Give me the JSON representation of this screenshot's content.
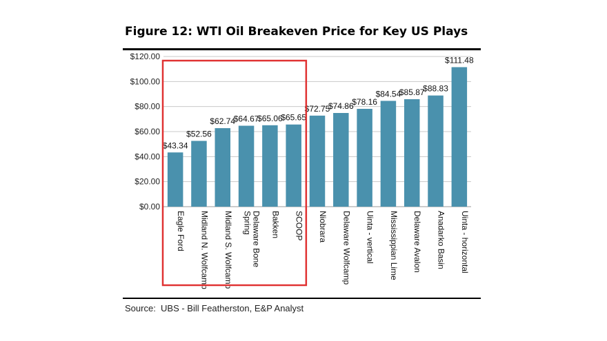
{
  "figure": {
    "title": "Figure 12: WTI Oil Breakeven Price for Key US Plays",
    "source": "Source:  UBS - Bill Featherston, E&P Analyst"
  },
  "chart_data": {
    "type": "bar",
    "title": "Figure 12: WTI Oil Breakeven Price for Key US Plays",
    "xlabel": "",
    "ylabel": "",
    "ylim": [
      0,
      120
    ],
    "yticks": [
      0,
      20,
      40,
      60,
      80,
      100,
      120
    ],
    "ytick_labels": [
      "$0.00",
      "$20.00",
      "$40.00",
      "$60.00",
      "$80.00",
      "$100.00",
      "$120.00"
    ],
    "grid": true,
    "categories": [
      [
        "Eagle Ford"
      ],
      [
        "Midland N. Wolfcamp"
      ],
      [
        "Midland S. Wolfcamp"
      ],
      [
        "Delaware Bone",
        "Spring"
      ],
      [
        "Bakken"
      ],
      [
        "SCOOP"
      ],
      [
        "Niobrara"
      ],
      [
        "Delaware Wolfcamp"
      ],
      [
        "Uinta - vertical"
      ],
      [
        "Mississippian Lime"
      ],
      [
        "Delaware Avalon"
      ],
      [
        "Anadarko Basin"
      ],
      [
        "Uinta - horizontal"
      ]
    ],
    "values": [
      43.34,
      52.56,
      62.74,
      64.67,
      65.06,
      65.65,
      72.75,
      74.86,
      78.16,
      84.54,
      85.87,
      88.83,
      111.48
    ],
    "value_labels": [
      "$43.34",
      "$52.56",
      "$62.74",
      "$64.67",
      "$65.06",
      "$65.65",
      "$72.75",
      "$74.86",
      "$78.16",
      "$84.54",
      "$85.87",
      "$88.83",
      "$111.48"
    ],
    "bar_color": "#4a91ad",
    "gridline_color": "#c8c8c8",
    "highlight": {
      "from_index": 0,
      "to_index": 5,
      "color": "#e03232"
    }
  }
}
